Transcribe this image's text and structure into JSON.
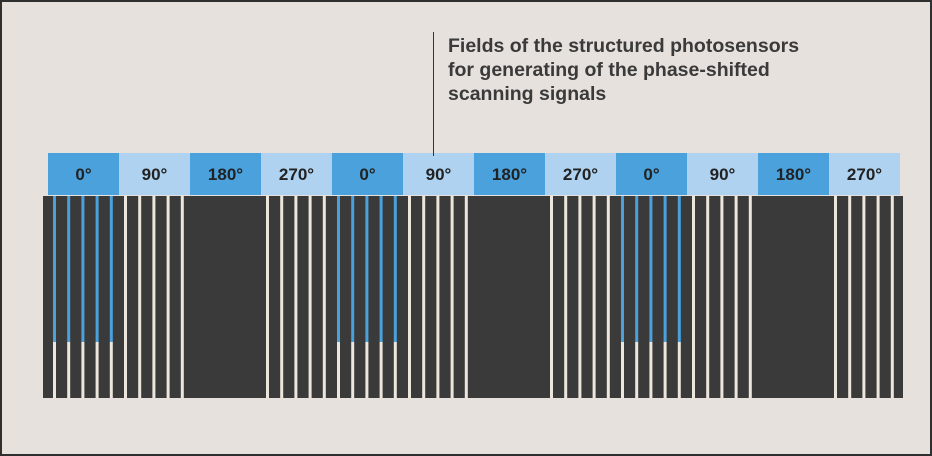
{
  "caption": {
    "lines": [
      "Fields of the structured photosensors",
      "for generating of the phase-shifted",
      "scanning signals"
    ]
  },
  "phases": [
    "0°",
    "90°",
    "180°",
    "270°",
    "0°",
    "90°",
    "180°",
    "270°",
    "0°",
    "90°",
    "180°",
    "270°"
  ],
  "colors": {
    "background": "#e6e1dc",
    "frame": "#2f2f2f",
    "dark_sensor": "#3a3a3a",
    "header_dark": "#4aa1dc",
    "header_light": "#aed2ef",
    "active_stripe": "#4aa1dc",
    "light_stripe": "#ede6dc"
  }
}
